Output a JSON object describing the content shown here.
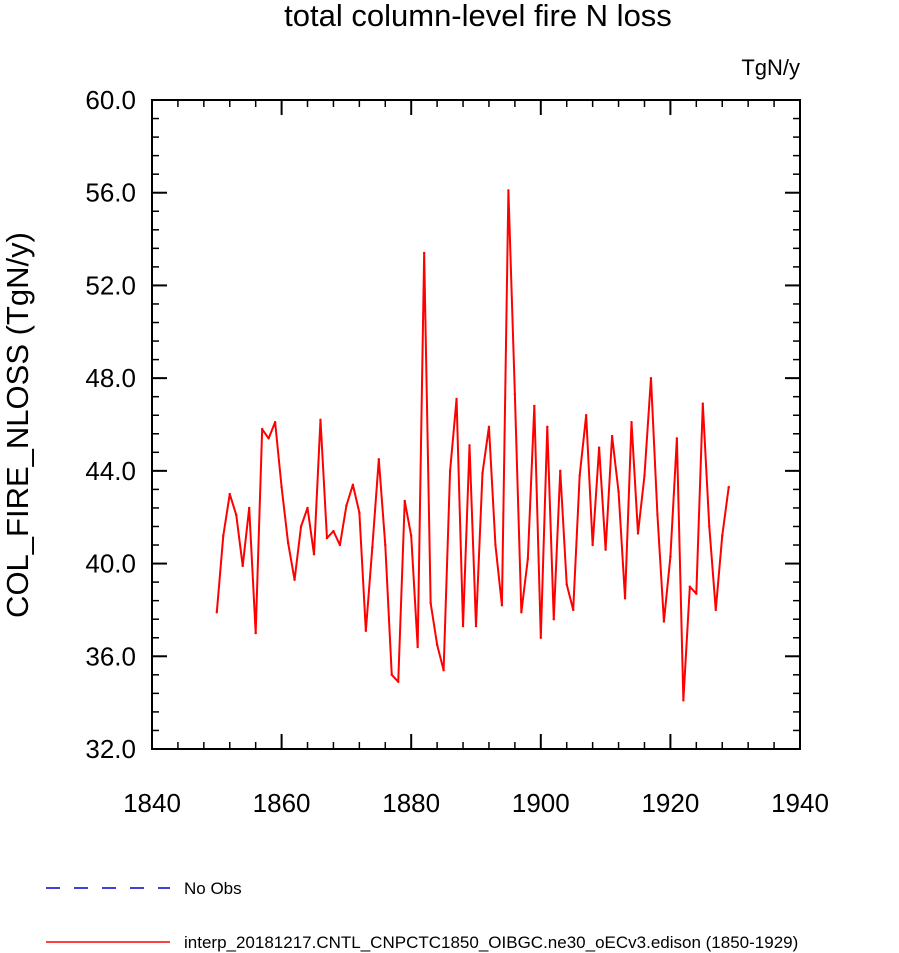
{
  "chart_data": {
    "type": "line",
    "title": "total column-level fire N loss",
    "units_label": "TgN/y",
    "xlabel": "",
    "ylabel": "COL_FIRE_NLOSS  (TgN/y)",
    "xlim": [
      1840,
      1940
    ],
    "ylim": [
      32.0,
      60.0
    ],
    "x_major_ticks": [
      1840,
      1860,
      1880,
      1900,
      1920,
      1940
    ],
    "x_tick_labels": [
      "1840",
      "1860",
      "1880",
      "1900",
      "1920",
      "1940"
    ],
    "x_minor_step": 4,
    "y_major_ticks": [
      32.0,
      36.0,
      40.0,
      44.0,
      48.0,
      52.0,
      56.0,
      60.0
    ],
    "y_tick_labels": [
      "32.0",
      "36.0",
      "40.0",
      "44.0",
      "48.0",
      "52.0",
      "56.0",
      "60.0"
    ],
    "y_minor_step": 0.8,
    "grid": false,
    "legend_position": "bottom-left",
    "legend": [
      {
        "label": "No Obs",
        "color": "#0000cc",
        "style": "dashed"
      },
      {
        "label": "interp_20181217.CNTL_CNPCTC1850_OIBGC.ne30_oECv3.edison (1850-1929)",
        "color": "#ff0000",
        "style": "solid"
      }
    ],
    "series": [
      {
        "name": "interp_20181217.CNTL_CNPCTC1850_OIBGC.ne30_oECv3.edison (1850-1929)",
        "color": "#ff0000",
        "x": [
          1850,
          1851,
          1852,
          1853,
          1854,
          1855,
          1856,
          1857,
          1858,
          1859,
          1860,
          1861,
          1862,
          1863,
          1864,
          1865,
          1866,
          1867,
          1868,
          1869,
          1870,
          1871,
          1872,
          1873,
          1874,
          1875,
          1876,
          1877,
          1878,
          1879,
          1880,
          1881,
          1882,
          1883,
          1884,
          1885,
          1886,
          1887,
          1888,
          1889,
          1890,
          1891,
          1892,
          1893,
          1894,
          1895,
          1896,
          1897,
          1898,
          1899,
          1900,
          1901,
          1902,
          1903,
          1904,
          1905,
          1906,
          1907,
          1908,
          1909,
          1910,
          1911,
          1912,
          1913,
          1914,
          1915,
          1916,
          1917,
          1918,
          1919,
          1920,
          1921,
          1922,
          1923,
          1924,
          1925,
          1926,
          1927,
          1928,
          1929
        ],
        "y": [
          37.9,
          41.2,
          43.0,
          42.1,
          39.9,
          42.4,
          37.0,
          45.8,
          45.4,
          46.1,
          43.3,
          40.9,
          39.3,
          41.6,
          42.4,
          40.4,
          46.2,
          41.1,
          41.4,
          40.8,
          42.5,
          43.4,
          42.2,
          37.1,
          40.7,
          44.5,
          40.8,
          35.2,
          34.9,
          42.7,
          41.2,
          36.4,
          53.4,
          38.3,
          36.5,
          35.4,
          44.0,
          47.1,
          37.3,
          45.1,
          37.3,
          43.9,
          45.9,
          40.8,
          38.2,
          56.1,
          47.3,
          37.9,
          40.2,
          46.8,
          36.8,
          45.9,
          37.6,
          44.0,
          39.1,
          38.0,
          43.8,
          46.4,
          40.8,
          45.0,
          40.6,
          45.5,
          43.1,
          38.5,
          46.1,
          41.3,
          43.8,
          48.0,
          42.1,
          37.5,
          40.3,
          45.4,
          34.1,
          39.0,
          38.7,
          46.9,
          41.6,
          38.0,
          41.2,
          43.3
        ]
      }
    ]
  }
}
